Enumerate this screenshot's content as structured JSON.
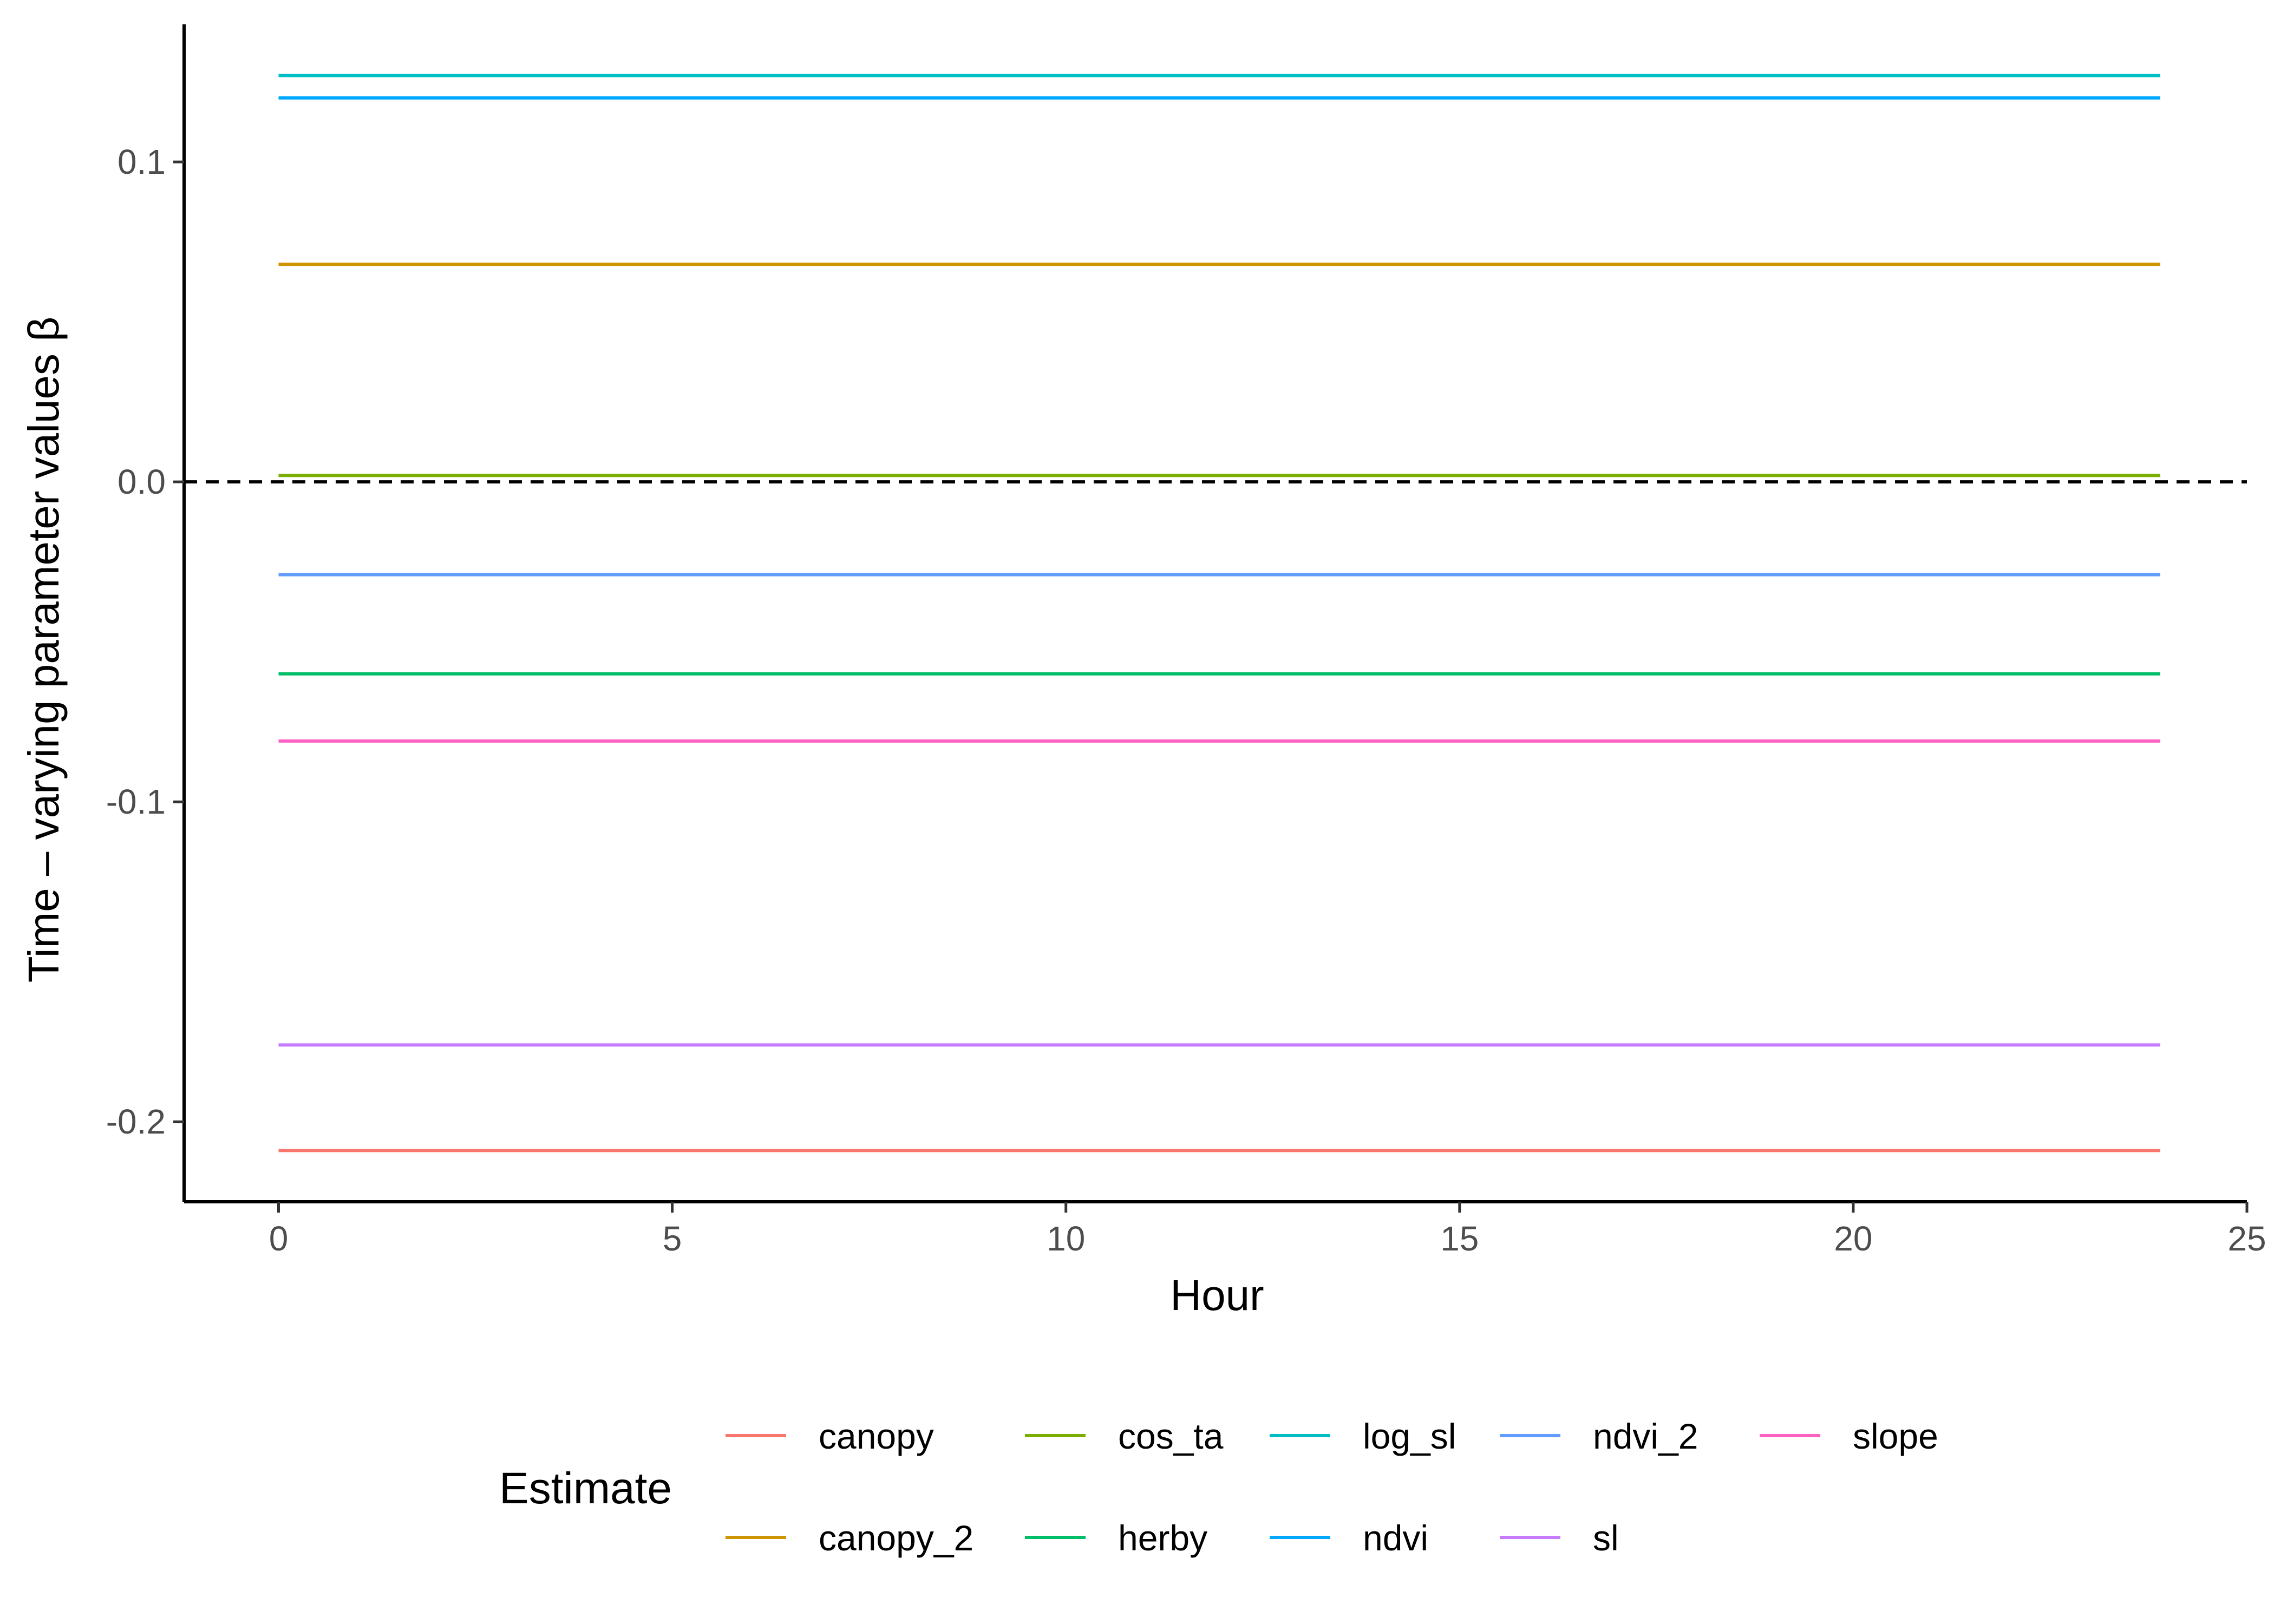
{
  "chart_data": {
    "type": "line",
    "xlabel": "Hour",
    "ylabel": "Time – varying parameter values β",
    "xlim": [
      -1.2,
      25
    ],
    "ylim": [
      -0.225,
      0.143
    ],
    "x_ticks": [
      0,
      5,
      10,
      15,
      20,
      25
    ],
    "x_tick_labels": [
      "0",
      "5",
      "10",
      "15",
      "20",
      "25"
    ],
    "y_ticks": [
      -0.2,
      -0.1,
      0.0,
      0.1
    ],
    "y_tick_labels": [
      "-0.2",
      "-0.1",
      "0.0",
      "0.1"
    ],
    "reference_line": {
      "y": 0,
      "style": "dashed",
      "color": "#000000"
    },
    "grid": false,
    "legend": {
      "title": "Estimate",
      "position": "bottom"
    },
    "x": [
      0,
      23.9
    ],
    "series": [
      {
        "name": "canopy",
        "color": "#F8766D",
        "values": [
          -0.209,
          -0.209
        ]
      },
      {
        "name": "canopy_2",
        "color": "#CD9600",
        "values": [
          0.068,
          0.068
        ]
      },
      {
        "name": "cos_ta",
        "color": "#7CAE00",
        "values": [
          0.002,
          0.002
        ]
      },
      {
        "name": "herby",
        "color": "#00BE67",
        "values": [
          -0.06,
          -0.06
        ]
      },
      {
        "name": "log_sl",
        "color": "#00BFC4",
        "values": [
          0.127,
          0.127
        ]
      },
      {
        "name": "ndvi",
        "color": "#00A9FF",
        "values": [
          0.12,
          0.12
        ]
      },
      {
        "name": "ndvi_2",
        "color": "#619CFF",
        "values": [
          -0.029,
          -0.029
        ]
      },
      {
        "name": "sl",
        "color": "#C77CFF",
        "values": [
          -0.176,
          -0.176
        ]
      },
      {
        "name": "slope",
        "color": "#FF61C3",
        "values": [
          -0.081,
          -0.081
        ]
      }
    ]
  }
}
